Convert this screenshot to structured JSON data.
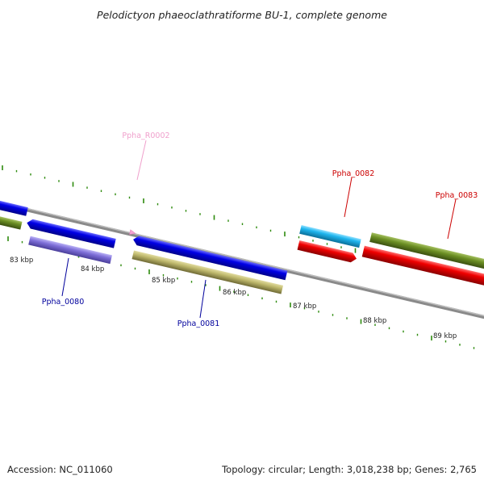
{
  "title": "Pelodictyon phaeoclathratiforme BU-1, complete genome",
  "footer": {
    "accession": "Accession: NC_011060",
    "summary": "Topology: circular; Length: 3,018,238 bp; Genes: 2,765"
  },
  "scale": {
    "unit": "kbp",
    "labels": [
      "83 kbp",
      "84 kbp",
      "85 kbp",
      "86 kbp",
      "87 kbp",
      "88 kbp",
      "89 kbp"
    ]
  },
  "gene_labels": {
    "rna": "Ppha_R0002",
    "g80": "Ppha_0080",
    "g81": "Ppha_0081",
    "g82": "Ppha_0082",
    "g83": "Ppha_0083"
  },
  "colors": {
    "tick": "#2e8b0e",
    "backbone": "#8a8a8a",
    "cds_blue": "#0000e6",
    "cds_cyan": "#1fb6ef",
    "cds_red": "#f00000",
    "purple": "#7e6fd8",
    "khaki": "#bdb76b",
    "olive": "#6b8e23",
    "rna_pink": "#f4a3d4",
    "label_blue": "#00009c",
    "label_red": "#cc0000",
    "label_pink": "#f0a0cc"
  }
}
